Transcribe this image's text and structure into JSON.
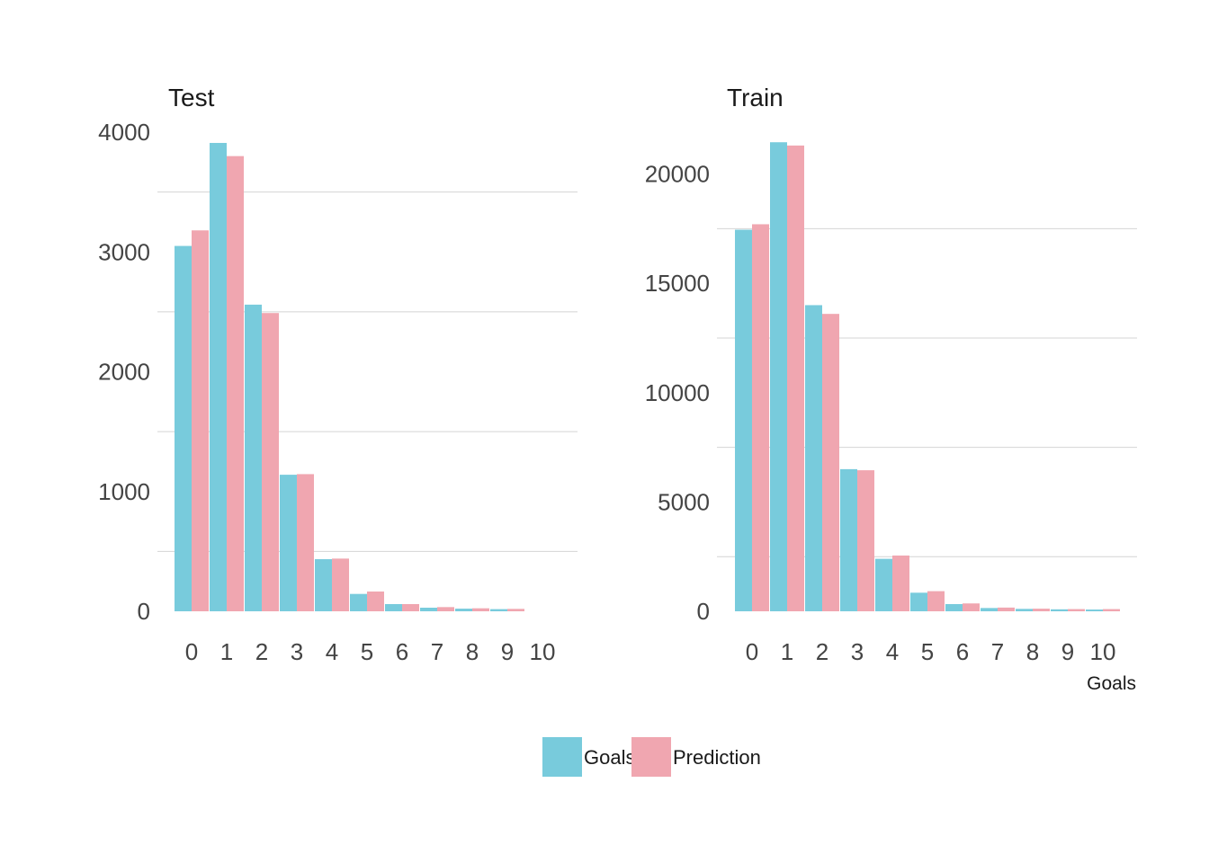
{
  "chart_data": {
    "type": "bar",
    "legend": {
      "position": "bottom",
      "entries": [
        {
          "name": "Goals",
          "color": "#78CBDC"
        },
        {
          "name": "Prediction",
          "color": "#F0A6B0"
        }
      ]
    },
    "xlabel": "Goals",
    "panels": [
      {
        "title": "Test",
        "categories": [
          "0",
          "1",
          "2",
          "3",
          "4",
          "5",
          "6",
          "7",
          "8",
          "9",
          "10"
        ],
        "ylim": [
          0,
          4000
        ],
        "yticks": [
          "0",
          "1000",
          "2000",
          "3000",
          "4000"
        ],
        "grid": true,
        "series": [
          {
            "name": "Goals",
            "color": "#78CBDC",
            "values": [
              3050,
              3910,
              2560,
              1140,
              435,
              145,
              60,
              30,
              22,
              18,
              0
            ]
          },
          {
            "name": "Prediction",
            "color": "#F0A6B0",
            "values": [
              3180,
              3800,
              2490,
              1145,
              440,
              165,
              60,
              35,
              25,
              20,
              0
            ]
          }
        ]
      },
      {
        "title": "Train",
        "categories": [
          "0",
          "1",
          "2",
          "3",
          "4",
          "5",
          "6",
          "7",
          "8",
          "9",
          "10"
        ],
        "ylim": [
          0,
          20000
        ],
        "yticks": [
          "0",
          "5000",
          "10000",
          "15000",
          "20000"
        ],
        "grid": true,
        "series": [
          {
            "name": "Goals",
            "color": "#78CBDC",
            "values": [
              17450,
              21450,
              14000,
              6500,
              2400,
              850,
              330,
              150,
              110,
              90,
              80
            ]
          },
          {
            "name": "Prediction",
            "color": "#F0A6B0",
            "values": [
              17700,
              21300,
              13600,
              6450,
              2550,
              920,
              360,
              170,
              120,
              100,
              100
            ]
          }
        ]
      }
    ]
  }
}
